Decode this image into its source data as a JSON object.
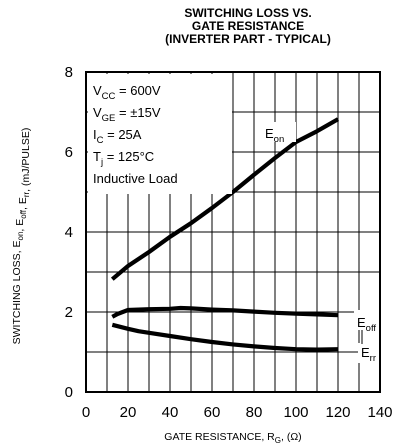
{
  "chart_data": {
    "type": "line",
    "title": [
      "SWITCHING LOSS VS.",
      "GATE RESISTANCE",
      "(INVERTER PART - TYPICAL)"
    ],
    "xlabel": "GATE RESISTANCE, R",
    "xlabel_sub": "G",
    "xlabel_tail": ", (Ω)",
    "ylabel": "SWITCHING LOSS, E",
    "ylabel_parts": [
      {
        "t": "SWITCHING LOSS, E",
        "sub": false
      },
      {
        "t": "on",
        "sub": true
      },
      {
        "t": ", E",
        "sub": false
      },
      {
        "t": "off",
        "sub": true
      },
      {
        "t": ", E",
        "sub": false
      },
      {
        "t": "rr",
        "sub": true
      },
      {
        "t": ", (mJ/PULSE)",
        "sub": false
      }
    ],
    "xlim": [
      0,
      140
    ],
    "ylim": [
      0,
      8
    ],
    "x_ticks": [
      "0",
      "20",
      "40",
      "60",
      "80",
      "100",
      "120",
      "140"
    ],
    "y_ticks": [
      "0",
      "2",
      "4",
      "6",
      "8"
    ],
    "grid": true,
    "conditions": [
      {
        "main": "V",
        "sub": "CC",
        "tail": " = 600V"
      },
      {
        "main": "V",
        "sub": "GE",
        "tail": " = ±15V"
      },
      {
        "main": "I",
        "sub": "C",
        "tail": " = 25A"
      },
      {
        "main": "T",
        "sub": "j",
        "tail": " = 125°C"
      },
      {
        "main": "Inductive Load",
        "sub": "",
        "tail": ""
      }
    ],
    "series": [
      {
        "name": "E",
        "name_sub": "on",
        "points": [
          [
            12.5,
            2.82
          ],
          [
            20,
            3.15
          ],
          [
            30,
            3.5
          ],
          [
            40,
            3.88
          ],
          [
            50,
            4.22
          ],
          [
            60,
            4.6
          ],
          [
            70,
            5.0
          ],
          [
            80,
            5.43
          ],
          [
            90,
            5.85
          ],
          [
            100,
            6.25
          ],
          [
            110,
            6.52
          ],
          [
            120,
            6.82
          ]
        ]
      },
      {
        "name": "E",
        "name_sub": "off",
        "points": [
          [
            12.5,
            1.88
          ],
          [
            15,
            1.95
          ],
          [
            20,
            2.05
          ],
          [
            30,
            2.07
          ],
          [
            40,
            2.08
          ],
          [
            45,
            2.1
          ],
          [
            50,
            2.09
          ],
          [
            60,
            2.06
          ],
          [
            70,
            2.04
          ],
          [
            80,
            2.01
          ],
          [
            90,
            1.98
          ],
          [
            100,
            1.96
          ],
          [
            110,
            1.94
          ],
          [
            120,
            1.92
          ]
        ]
      },
      {
        "name": "E",
        "name_sub": "rr",
        "points": [
          [
            12.5,
            1.68
          ],
          [
            20,
            1.58
          ],
          [
            25,
            1.52
          ],
          [
            30,
            1.48
          ],
          [
            40,
            1.4
          ],
          [
            50,
            1.32
          ],
          [
            60,
            1.25
          ],
          [
            70,
            1.19
          ],
          [
            80,
            1.14
          ],
          [
            90,
            1.1
          ],
          [
            100,
            1.07
          ],
          [
            110,
            1.06
          ],
          [
            120,
            1.07
          ]
        ]
      }
    ]
  }
}
